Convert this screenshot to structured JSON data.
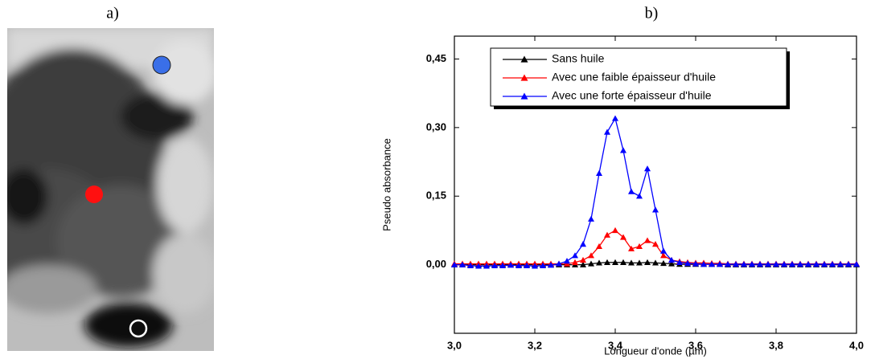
{
  "image_panel": {
    "label": "a)"
  },
  "chart_data": {
    "type": "line",
    "title": "b)",
    "x_label": "Longueur d'onde (µm)",
    "y_label": "Pseudo absorbance",
    "xlim": [
      3.0,
      4.0
    ],
    "ylim": [
      -0.15,
      0.5
    ],
    "xticks": [
      {
        "value": 3.0,
        "label": "3,0"
      },
      {
        "value": 3.2,
        "label": "3,2"
      },
      {
        "value": 3.4,
        "label": "3,4"
      },
      {
        "value": 3.6,
        "label": "3,6"
      },
      {
        "value": 3.8,
        "label": "3,8"
      },
      {
        "value": 4.0,
        "label": "4,0"
      }
    ],
    "yticks": [
      {
        "value": 0.0,
        "label": "0,00"
      },
      {
        "value": 0.15,
        "label": "0,15"
      },
      {
        "value": 0.3,
        "label": "0,30"
      },
      {
        "value": 0.45,
        "label": "0,45"
      }
    ],
    "legend": "upper-center",
    "x": [
      3,
      3.02,
      3.04,
      3.06,
      3.08,
      3.1,
      3.12,
      3.14,
      3.16,
      3.18,
      3.2,
      3.22,
      3.24,
      3.26,
      3.28,
      3.3,
      3.32,
      3.34,
      3.36,
      3.38,
      3.4,
      3.42,
      3.44,
      3.46,
      3.48,
      3.5,
      3.52,
      3.54,
      3.56,
      3.58,
      3.6,
      3.62,
      3.64,
      3.66,
      3.68,
      3.7,
      3.72,
      3.74,
      3.76,
      3.78,
      3.8,
      3.82,
      3.84,
      3.86,
      3.88,
      3.9,
      3.92,
      3.94,
      3.96,
      3.98,
      4
    ],
    "series": [
      {
        "name": "Sans huile",
        "color": "#000000",
        "values": [
          0,
          0,
          0,
          0,
          0,
          0,
          0,
          0,
          0,
          0,
          0,
          0,
          0,
          0,
          0,
          0,
          0,
          0.002,
          0.004,
          0.005,
          0.005,
          0.005,
          0.004,
          0.004,
          0.005,
          0.004,
          0.003,
          0.002,
          0.001,
          0.001,
          0.001,
          0.001,
          0.001,
          0.001,
          0,
          0,
          0,
          0,
          0,
          0,
          0,
          0,
          0,
          0,
          0,
          0,
          0,
          0,
          0,
          0,
          0
        ]
      },
      {
        "name": "Avec une faible épaisseur d'huile",
        "color": "#ff0000",
        "values": [
          0.002,
          0.002,
          0.002,
          0.002,
          0.002,
          0.002,
          0.002,
          0.002,
          0.002,
          0.002,
          0.002,
          0.002,
          0.002,
          0.002,
          0.002,
          0.005,
          0.01,
          0.02,
          0.04,
          0.065,
          0.075,
          0.06,
          0.035,
          0.04,
          0.053,
          0.045,
          0.02,
          0.01,
          0.007,
          0.005,
          0.004,
          0.004,
          0.003,
          0.003,
          0.002,
          0.002,
          0.002,
          0.002,
          0.002,
          0.002,
          0.002,
          0.002,
          0.002,
          0.002,
          0.002,
          0.002,
          0.002,
          0.002,
          0.002,
          0.002,
          0.002
        ]
      },
      {
        "name": "Avec une forte épaisseur d'huile",
        "color": "#0000ff",
        "values": [
          0,
          0,
          -0.002,
          -0.003,
          -0.003,
          -0.002,
          -0.002,
          -0.001,
          -0.002,
          -0.002,
          -0.003,
          -0.002,
          -0.001,
          0.002,
          0.008,
          0.02,
          0.045,
          0.1,
          0.2,
          0.29,
          0.32,
          0.25,
          0.16,
          0.15,
          0.21,
          0.12,
          0.03,
          0.01,
          0.005,
          0.003,
          0.002,
          0.001,
          0.001,
          0.001,
          0.001,
          0.001,
          0.001,
          0.001,
          0.001,
          0.001,
          0.001,
          0.001,
          0.001,
          0.001,
          0.001,
          0.001,
          0.001,
          0.001,
          0.001,
          0.001,
          0.001
        ]
      }
    ]
  }
}
